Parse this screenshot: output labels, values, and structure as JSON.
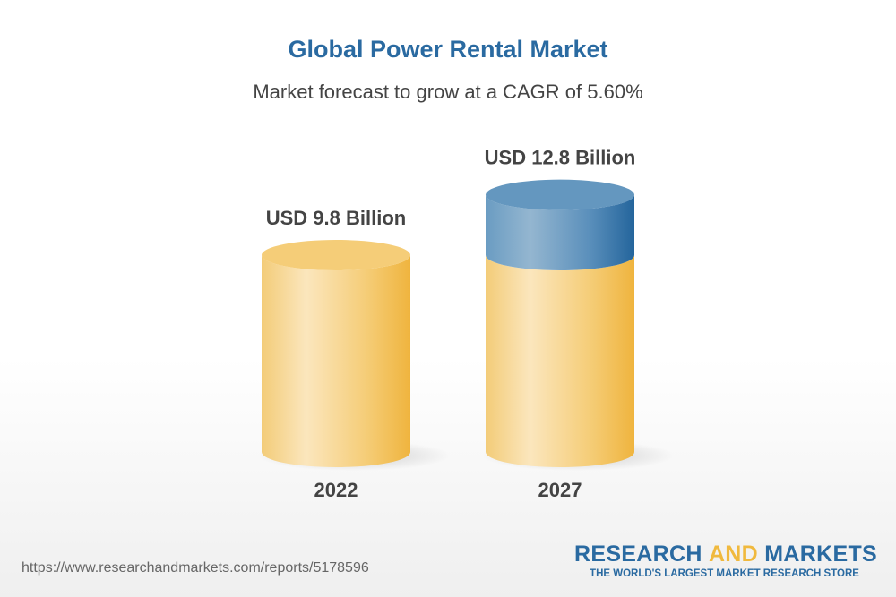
{
  "title": "Global Power Rental Market",
  "subtitle": "Market forecast to grow at a CAGR of 5.60%",
  "chart_data": {
    "type": "bar",
    "style": "3d-cylinder",
    "categories": [
      "2022",
      "2027"
    ],
    "values": [
      9.8,
      12.8
    ],
    "data_labels": [
      "USD 9.8 Billion",
      "USD 12.8 Billion"
    ],
    "unit": "USD Billion",
    "ylim": [
      0,
      12.8
    ],
    "grid": false,
    "colors": {
      "base": "#f3c15a",
      "growth": "#2a6aa1"
    }
  },
  "footer": {
    "url": "https://www.researchandmarkets.com/reports/5178596",
    "logo": {
      "word1": "RESEARCH ",
      "word2": "AND",
      "word3": " MARKETS",
      "tagline": "THE WORLD'S LARGEST MARKET RESEARCH STORE"
    }
  }
}
